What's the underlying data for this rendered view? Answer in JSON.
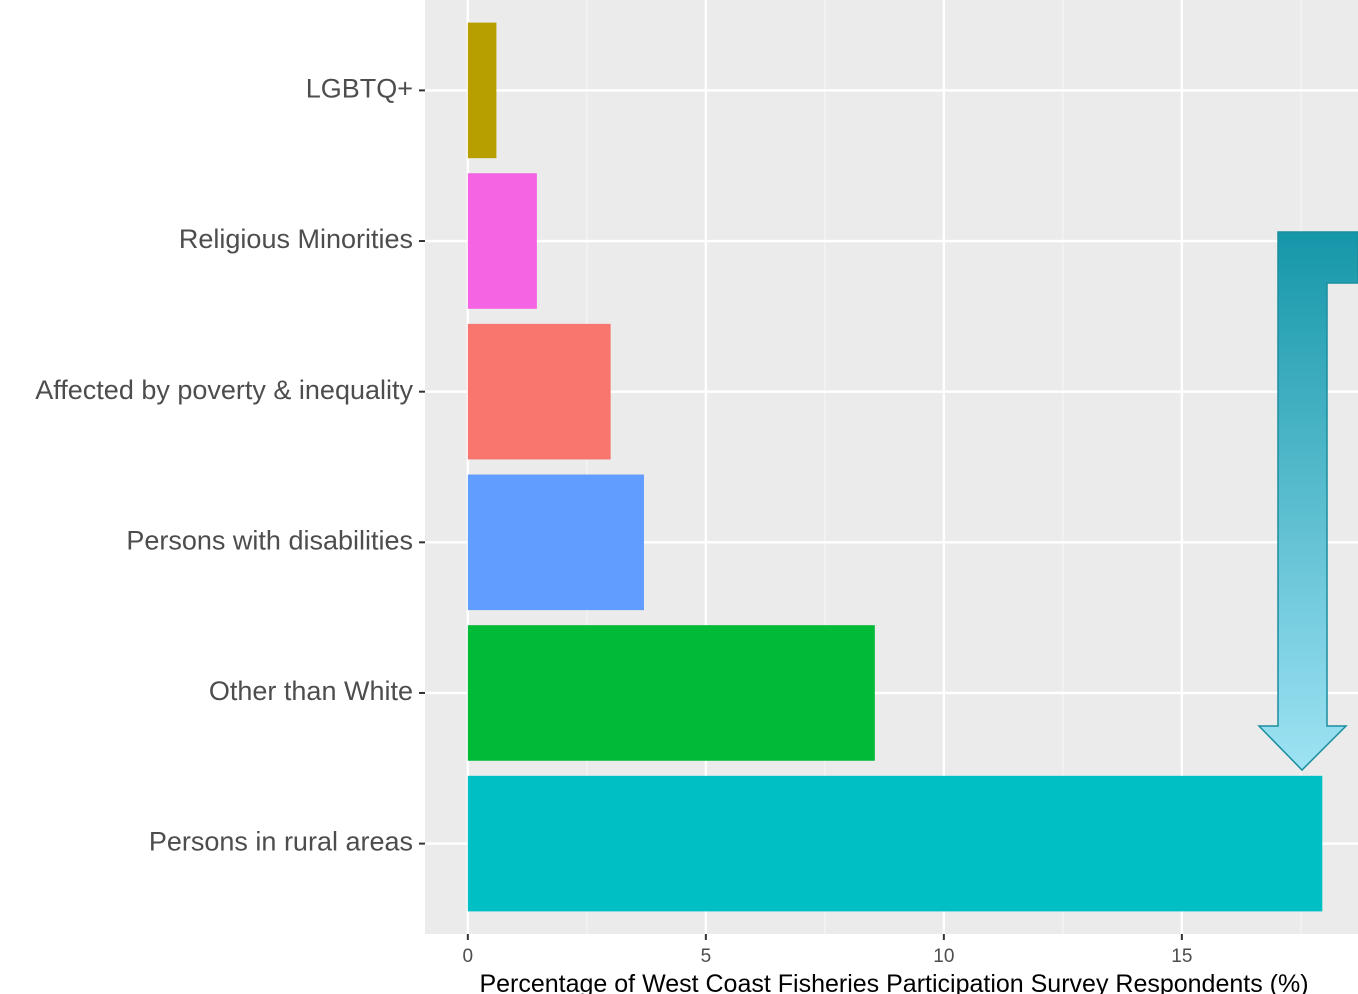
{
  "chart_data": {
    "type": "bar",
    "orientation": "horizontal",
    "categories": [
      "LGBTQ+",
      "Religious Minorities",
      "Affected by poverty & inequality",
      "Persons with disabilities",
      "Other than White",
      "Persons in rural areas"
    ],
    "values": [
      0.6,
      1.45,
      3.0,
      3.7,
      8.55,
      17.95
    ],
    "colors": [
      "#b79f00",
      "#f564e3",
      "#f8766d",
      "#619cff",
      "#00ba38",
      "#00bfc4"
    ],
    "xlabel": "Percentage of West Coast Fisheries Participation Survey Respondents (%)",
    "ylabel": "",
    "xlim": [
      -0.9,
      18.7
    ],
    "x_ticks": [
      0,
      5,
      10,
      15
    ],
    "x_tick_labels": [
      "0",
      "5",
      "10",
      "15"
    ],
    "grid": true,
    "panel_background": "#ebebeb",
    "annotation": {
      "type": "arrow",
      "direction": "down",
      "points_to": "Persons in rural areas",
      "color_top": "#1597a9",
      "color_bottom": "#9ee3f4"
    }
  }
}
